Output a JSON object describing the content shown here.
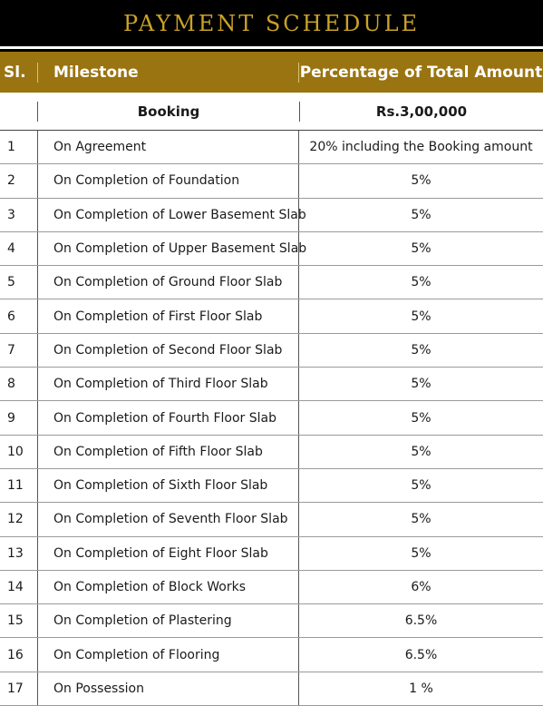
{
  "title": "PAYMENT SCHEDULE",
  "header": {
    "sl": "Sl.",
    "milestone": "Milestone",
    "percentage": "Percentage of Total Amount"
  },
  "booking": {
    "label": "Booking",
    "amount": "Rs.3,00,000"
  },
  "rows": [
    {
      "sl": "1",
      "milestone": "On Agreement",
      "percentage": "20%  including the Booking amount"
    },
    {
      "sl": "2",
      "milestone": "On Completion of Foundation",
      "percentage": "5%"
    },
    {
      "sl": "3",
      "milestone": "On Completion of Lower Basement Slab",
      "percentage": "5%"
    },
    {
      "sl": "4",
      "milestone": "On Completion of Upper Basement Slab",
      "percentage": "5%"
    },
    {
      "sl": "5",
      "milestone": "On Completion of Ground Floor Slab",
      "percentage": "5%"
    },
    {
      "sl": "6",
      "milestone": "On Completion of First Floor Slab",
      "percentage": "5%"
    },
    {
      "sl": "7",
      "milestone": "On Completion of Second Floor Slab",
      "percentage": "5%"
    },
    {
      "sl": "8",
      "milestone": "On Completion of Third Floor Slab",
      "percentage": "5%"
    },
    {
      "sl": "9",
      "milestone": "On Completion of Fourth Floor Slab",
      "percentage": "5%"
    },
    {
      "sl": "10",
      "milestone": "On Completion of Fifth Floor Slab",
      "percentage": "5%"
    },
    {
      "sl": "11",
      "milestone": "On Completion of Sixth Floor Slab",
      "percentage": "5%"
    },
    {
      "sl": "12",
      "milestone": "On Completion of Seventh Floor Slab",
      "percentage": "5%"
    },
    {
      "sl": "13",
      "milestone": "On Completion of Eight Floor Slab",
      "percentage": "5%"
    },
    {
      "sl": "14",
      "milestone": "On Completion of Block Works",
      "percentage": "6%"
    },
    {
      "sl": "15",
      "milestone": "On Completion of Plastering",
      "percentage": "6.5%"
    },
    {
      "sl": "16",
      "milestone": "On Completion of Flooring",
      "percentage": "6.5%"
    },
    {
      "sl": "17",
      "milestone": "On Possession",
      "percentage": "1 %"
    }
  ],
  "colors": {
    "title_bg": "#000000",
    "title_text": "#c9a227",
    "header_bg": "#9a7410",
    "header_text": "#ffffff"
  }
}
